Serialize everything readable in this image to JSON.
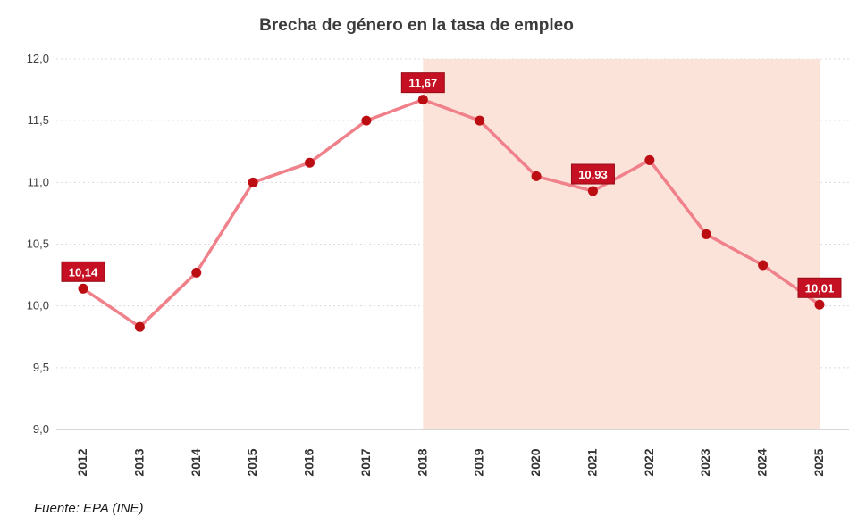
{
  "title": "Brecha de género en la tasa de empleo",
  "source": "Fuente: EPA (INE)",
  "chart_data": {
    "type": "line",
    "x": [
      2012,
      2013,
      2014,
      2015,
      2016,
      2017,
      2018,
      2019,
      2020,
      2021,
      2022,
      2023,
      2024,
      2025
    ],
    "values": [
      10.14,
      9.83,
      10.27,
      11.0,
      11.16,
      11.5,
      11.67,
      11.5,
      11.05,
      10.93,
      11.18,
      10.58,
      10.33,
      10.01
    ],
    "point_labels": [
      {
        "x": 2012,
        "text": "10,14"
      },
      {
        "x": 2018,
        "text": "11,67"
      },
      {
        "x": 2021,
        "text": "10,93"
      },
      {
        "x": 2025,
        "text": "10,01"
      }
    ],
    "ylim": [
      9.0,
      12.0
    ],
    "yticks": {
      "values": [
        9.0,
        9.5,
        10.0,
        10.5,
        11.0,
        11.5,
        12.0
      ],
      "labels": [
        "9,0",
        "9,5",
        "10,0",
        "10,5",
        "11,0",
        "11,5",
        "12,0"
      ]
    },
    "xlabel": "",
    "ylabel": "",
    "grid": "horizontal-dashed",
    "legend": "none",
    "shaded_region": {
      "from_x": 2018,
      "to_x": 2025
    },
    "colors": {
      "line": "#f0808a",
      "marker": "#bc0e12",
      "label_bg": "#c41022",
      "label_border": "#970c16",
      "label_text": "#ffffff",
      "shade": "#fbe3da",
      "grid": "#dcdcdc",
      "baseline": "#c9c9c9"
    }
  }
}
